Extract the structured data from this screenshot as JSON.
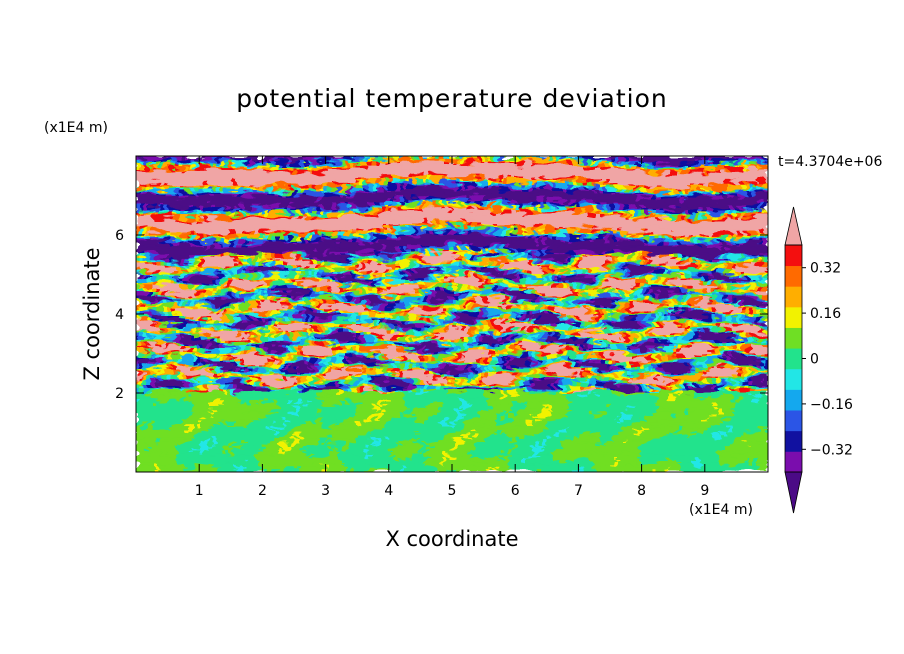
{
  "chart_data": {
    "type": "heatmap",
    "title": "potential temperature deviation",
    "xlabel": "X coordinate",
    "ylabel": "Z coordinate",
    "x_unit": "(x1E4 m)",
    "y_unit": "(x1E4 m)",
    "annotation": "t=4.3704e+06",
    "xlim": [
      0,
      10
    ],
    "ylim": [
      0,
      8
    ],
    "x_ticks": [
      1,
      2,
      3,
      4,
      5,
      6,
      7,
      8,
      9
    ],
    "x_tick_labels": [
      "1",
      "2",
      "3",
      "4",
      "5",
      "6",
      "7",
      "8",
      "9"
    ],
    "y_ticks": [
      2,
      4,
      6
    ],
    "y_tick_labels": [
      "2",
      "4",
      "6"
    ],
    "colorbar": {
      "levels": [
        -0.48,
        -0.4,
        -0.32,
        -0.24,
        -0.16,
        -0.08,
        0,
        0.08,
        0.16,
        0.24,
        0.32,
        0.4,
        0.48
      ],
      "colors": [
        "#4b0a86",
        "#7a0dad",
        "#1111a0",
        "#2b55e6",
        "#14a8ee",
        "#22e6e6",
        "#22e38c",
        "#6fdf24",
        "#f2f200",
        "#ffae00",
        "#ff6a00",
        "#f40f0f",
        "#f0a5a5"
      ],
      "tick_values": [
        0.32,
        0.16,
        0,
        -0.16,
        -0.32
      ],
      "tick_labels": [
        "0.32",
        "0.16",
        "0",
        "−0.16",
        "−0.32"
      ],
      "extend": "both"
    },
    "regions": [
      {
        "description": "z < 2: near-neutral field (green, light-green) with weak swirls",
        "z_range": [
          0,
          2
        ],
        "value_range": [
          -0.08,
          0.08
        ]
      },
      {
        "description": "2 < z < 5.5: turbulent layered band, full range of values",
        "z_range": [
          2,
          5.5
        ],
        "value_range": [
          -0.48,
          0.48
        ]
      },
      {
        "description": "z > 5.5: alternating strong positive (pink) and negative (purple) horizontal layers",
        "z_range": [
          5.5,
          8
        ],
        "value_range": [
          -0.48,
          0.48
        ]
      }
    ]
  }
}
